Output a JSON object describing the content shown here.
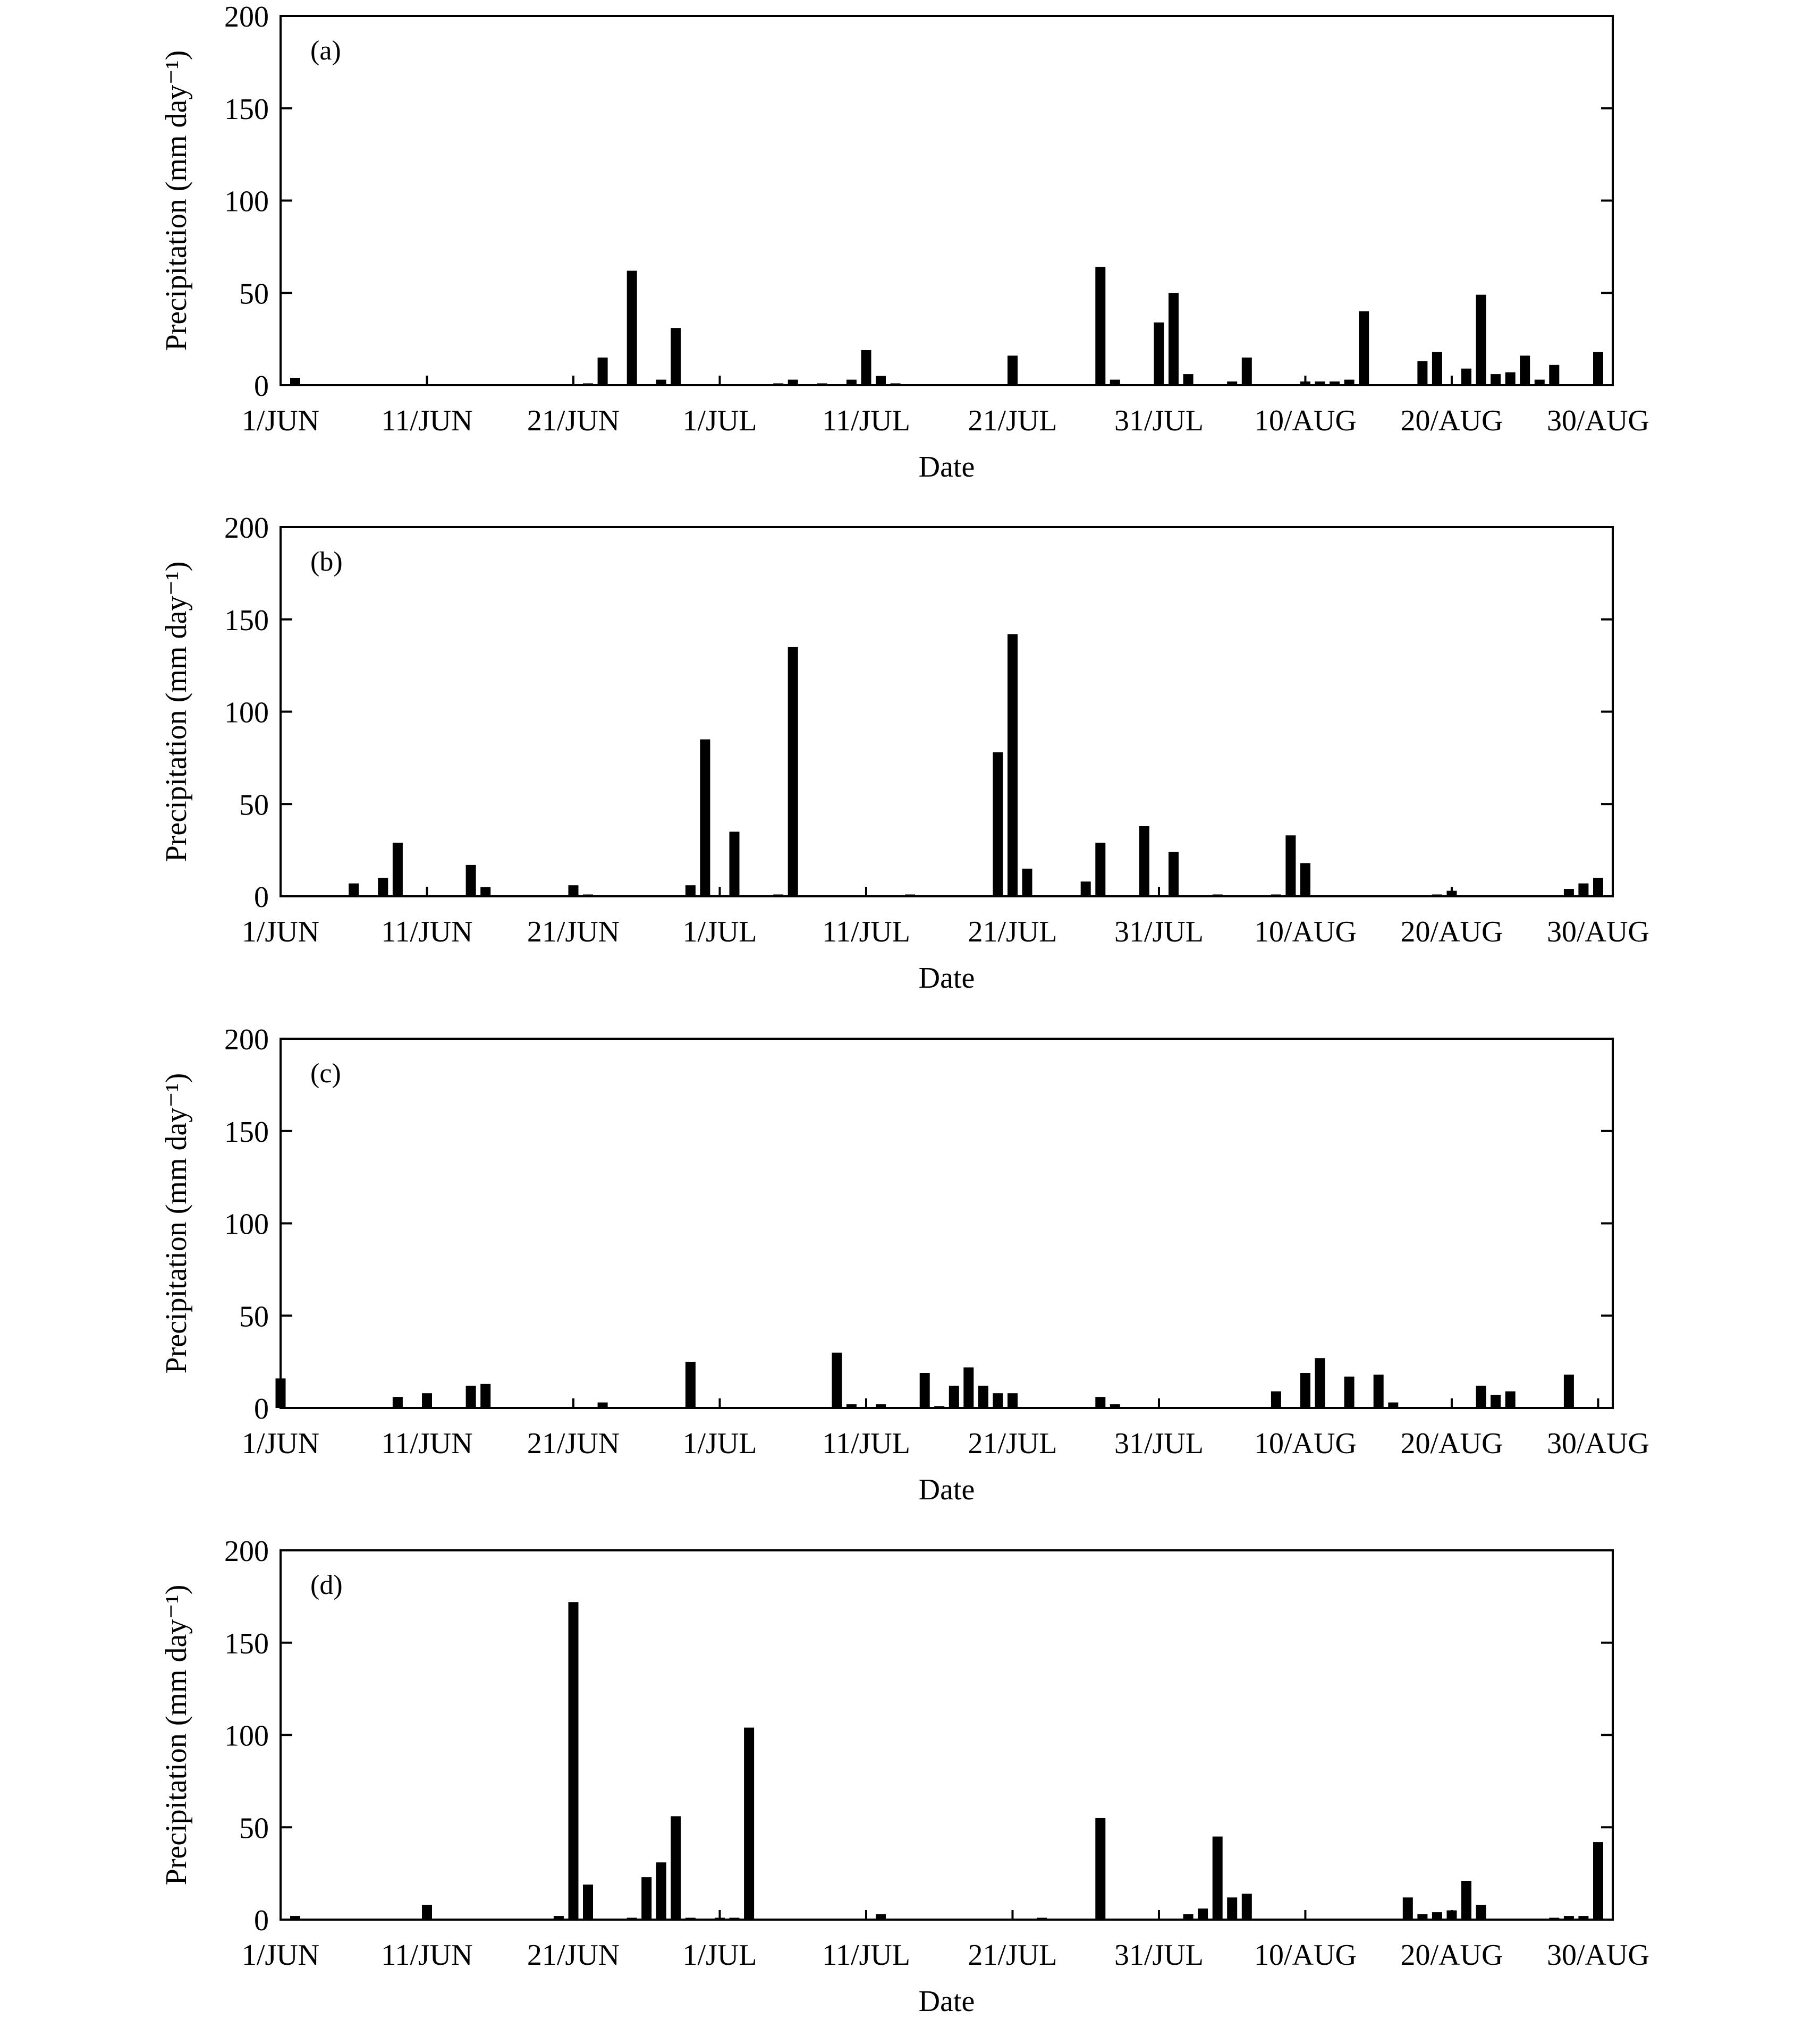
{
  "chart_data": [
    {
      "type": "bar",
      "panel_label": "(a)",
      "xlabel": "Date",
      "ylabel": "Precipitation (mm day⁻¹)",
      "ylim": [
        0,
        200
      ],
      "yticks": [
        0,
        50,
        100,
        150,
        200
      ],
      "xlim": [
        1,
        92
      ],
      "xticks": [
        {
          "day": 1,
          "label": "1/JUN"
        },
        {
          "day": 11,
          "label": "11/JUN"
        },
        {
          "day": 21,
          "label": "21/JUN"
        },
        {
          "day": 31,
          "label": "1/JUL"
        },
        {
          "day": 41,
          "label": "11/JUL"
        },
        {
          "day": 51,
          "label": "21/JUL"
        },
        {
          "day": 61,
          "label": "31/JUL"
        },
        {
          "day": 71,
          "label": "10/AUG"
        },
        {
          "day": 81,
          "label": "20/AUG"
        },
        {
          "day": 91,
          "label": "30/AUG"
        }
      ],
      "x": [
        2,
        22,
        23,
        25,
        27,
        28,
        35,
        36,
        38,
        40,
        41,
        42,
        43,
        51,
        57,
        58,
        61,
        62,
        63,
        66,
        67,
        71,
        72,
        73,
        74,
        75,
        79,
        80,
        82,
        83,
        84,
        85,
        86,
        87,
        88,
        91
      ],
      "values": [
        4,
        1,
        15,
        62,
        3,
        31,
        1,
        3,
        1,
        3,
        19,
        5,
        1,
        16,
        64,
        3,
        34,
        50,
        6,
        2,
        15,
        2,
        2,
        2,
        3,
        40,
        13,
        18,
        9,
        49,
        6,
        7,
        16,
        3,
        11,
        18
      ]
    },
    {
      "type": "bar",
      "panel_label": "(b)",
      "xlabel": "Date",
      "ylabel": "Precipitation (mm day⁻¹)",
      "ylim": [
        0,
        200
      ],
      "yticks": [
        0,
        50,
        100,
        150,
        200
      ],
      "xlim": [
        1,
        92
      ],
      "xticks": [
        {
          "day": 1,
          "label": "1/JUN"
        },
        {
          "day": 11,
          "label": "11/JUN"
        },
        {
          "day": 21,
          "label": "21/JUN"
        },
        {
          "day": 31,
          "label": "1/JUL"
        },
        {
          "day": 41,
          "label": "11/JUL"
        },
        {
          "day": 51,
          "label": "21/JUL"
        },
        {
          "day": 61,
          "label": "31/JUL"
        },
        {
          "day": 71,
          "label": "10/AUG"
        },
        {
          "day": 81,
          "label": "20/AUG"
        },
        {
          "day": 91,
          "label": "30/AUG"
        }
      ],
      "x": [
        6,
        8,
        9,
        14,
        15,
        21,
        22,
        29,
        30,
        32,
        35,
        36,
        44,
        50,
        51,
        52,
        56,
        57,
        60,
        62,
        65,
        69,
        70,
        71,
        80,
        81,
        89,
        90,
        91
      ],
      "values": [
        7,
        10,
        29,
        17,
        5,
        6,
        1,
        6,
        85,
        35,
        1,
        135,
        1,
        78,
        142,
        15,
        8,
        29,
        38,
        24,
        1,
        1,
        33,
        18,
        1,
        3,
        4,
        7,
        10
      ]
    },
    {
      "type": "bar",
      "panel_label": "(c)",
      "xlabel": "Date",
      "ylabel": "Precipitation (mm day⁻¹)",
      "ylim": [
        0,
        200
      ],
      "yticks": [
        0,
        50,
        100,
        150,
        200
      ],
      "xlim": [
        1,
        92
      ],
      "xticks": [
        {
          "day": 1,
          "label": "1/JUN"
        },
        {
          "day": 11,
          "label": "11/JUN"
        },
        {
          "day": 21,
          "label": "21/JUN"
        },
        {
          "day": 31,
          "label": "1/JUL"
        },
        {
          "day": 41,
          "label": "11/JUL"
        },
        {
          "day": 51,
          "label": "21/JUL"
        },
        {
          "day": 61,
          "label": "31/JUL"
        },
        {
          "day": 71,
          "label": "10/AUG"
        },
        {
          "day": 81,
          "label": "20/AUG"
        },
        {
          "day": 91,
          "label": "30/AUG"
        }
      ],
      "x": [
        1,
        9,
        11,
        14,
        15,
        23,
        29,
        39,
        40,
        42,
        45,
        46,
        47,
        48,
        49,
        50,
        51,
        57,
        58,
        69,
        71,
        72,
        74,
        76,
        77,
        83,
        84,
        85,
        89
      ],
      "values": [
        16,
        6,
        8,
        12,
        13,
        3,
        25,
        30,
        2,
        2,
        19,
        1,
        12,
        22,
        12,
        8,
        8,
        6,
        2,
        9,
        19,
        27,
        17,
        18,
        3,
        12,
        7,
        9,
        18
      ]
    },
    {
      "type": "bar",
      "panel_label": "(d)",
      "xlabel": "Date",
      "ylabel": "Precipitation (mm day⁻¹)",
      "ylim": [
        0,
        200
      ],
      "yticks": [
        0,
        50,
        100,
        150,
        200
      ],
      "xlim": [
        1,
        92
      ],
      "xticks": [
        {
          "day": 1,
          "label": "1/JUN"
        },
        {
          "day": 11,
          "label": "11/JUN"
        },
        {
          "day": 21,
          "label": "21/JUN"
        },
        {
          "day": 31,
          "label": "1/JUL"
        },
        {
          "day": 41,
          "label": "11/JUL"
        },
        {
          "day": 51,
          "label": "21/JUL"
        },
        {
          "day": 61,
          "label": "31/JUL"
        },
        {
          "day": 71,
          "label": "10/AUG"
        },
        {
          "day": 81,
          "label": "20/AUG"
        },
        {
          "day": 91,
          "label": "30/AUG"
        }
      ],
      "x": [
        2,
        11,
        20,
        21,
        22,
        25,
        26,
        27,
        28,
        29,
        31,
        32,
        33,
        42,
        53,
        57,
        63,
        64,
        65,
        66,
        67,
        78,
        79,
        80,
        81,
        82,
        83,
        88,
        89,
        90,
        91
      ],
      "values": [
        2,
        8,
        2,
        172,
        19,
        1,
        23,
        31,
        56,
        1,
        1,
        1,
        104,
        3,
        1,
        55,
        3,
        6,
        45,
        12,
        14,
        12,
        3,
        4,
        5,
        21,
        8,
        1,
        2,
        2,
        42
      ]
    }
  ]
}
